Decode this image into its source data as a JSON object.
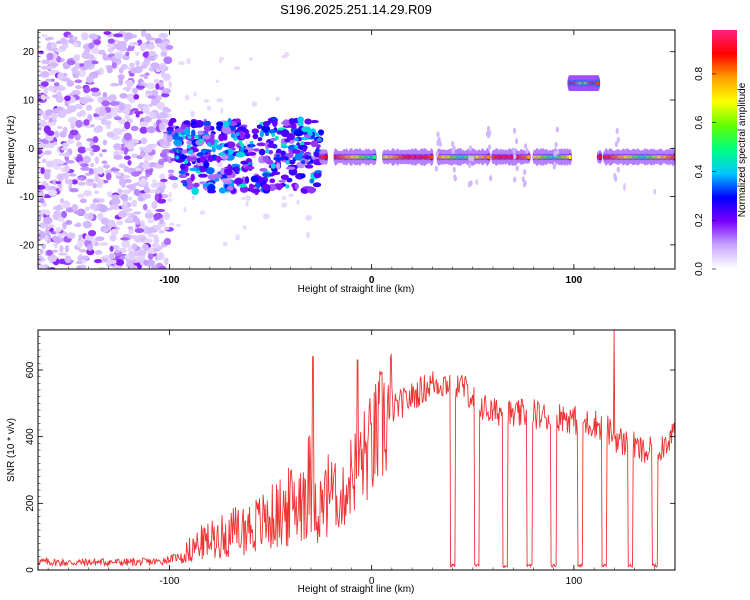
{
  "title": "S196.2025.251.14.29.R09",
  "chart_data": [
    {
      "type": "heatmap",
      "title": "S196.2025.251.14.29.R09",
      "xlabel": "Height of straight line (km)",
      "ylabel": "Frequency (Hz)",
      "xlim": [
        -165,
        150
      ],
      "ylim": [
        -25,
        24.5
      ],
      "xticks": [
        -100,
        0,
        100
      ],
      "xtick_labels": [
        "-100",
        "0",
        "100"
      ],
      "yticks": [
        -20,
        -10,
        0,
        10,
        20
      ],
      "ytick_labels": [
        "-20",
        "-10",
        "0",
        "10",
        "20"
      ],
      "colorbar": {
        "label": "Normalized spectral amplitude",
        "range": [
          0,
          0.98
        ],
        "ticks": [
          0.0,
          0.2,
          0.4,
          0.6,
          0.8
        ],
        "tick_labels": [
          "0.0",
          "0.2",
          "0.4",
          "0.6",
          "0.8"
        ],
        "colormap": [
          "#ffffff",
          "#c8a6ff",
          "#7a00ff",
          "#0000ff",
          "#00c8ff",
          "#00ff80",
          "#60ff00",
          "#ffff00",
          "#ffa000",
          "#ff0000",
          "#ff2080"
        ]
      },
      "features": [
        {
          "name": "noise region",
          "x_range": [
            -165,
            -100
          ],
          "freq_range": [
            -25,
            24
          ],
          "amplitude": 0.1
        },
        {
          "name": "transition scatter",
          "x_range": [
            -100,
            -25
          ],
          "freq_range": [
            -9,
            6
          ],
          "amplitude": 0.35
        },
        {
          "name": "main line",
          "x_range": [
            -25,
            150
          ],
          "freq": -1.8,
          "amplitude": 0.7
        },
        {
          "name": "offset line",
          "x_range": [
            98,
            112
          ],
          "freq": 13.5,
          "amplitude": 0.8
        }
      ]
    },
    {
      "type": "line",
      "xlabel": "Height of straight line (km)",
      "ylabel": "SNR (10 * v/v)",
      "xlim": [
        -165,
        150
      ],
      "ylim": [
        0,
        720
      ],
      "xticks": [
        -100,
        0,
        100
      ],
      "xtick_labels": [
        "-100",
        "0",
        "100"
      ],
      "yticks": [
        0,
        200,
        400,
        600
      ],
      "ytick_labels": [
        "0",
        "200",
        "400",
        "600"
      ],
      "series": [
        {
          "name": "SNR",
          "color": "#ee3333",
          "x": [
            -165,
            -150,
            -135,
            -120,
            -105,
            -95,
            -85,
            -75,
            -65,
            -55,
            -45,
            -38,
            -31,
            -25,
            -20,
            -15,
            -10,
            -5,
            0,
            5,
            10,
            15,
            20,
            25,
            30,
            35,
            40,
            45,
            50,
            55,
            60,
            65,
            70,
            75,
            80,
            85,
            90,
            95,
            100,
            105,
            110,
            115,
            120,
            125,
            130,
            135,
            140,
            145,
            150
          ],
          "values": [
            25,
            22,
            24,
            23,
            25,
            40,
            80,
            100,
            120,
            140,
            170,
            200,
            260,
            180,
            240,
            200,
            290,
            330,
            370,
            430,
            480,
            500,
            520,
            540,
            560,
            560,
            560,
            550,
            520,
            490,
            470,
            480,
            460,
            470,
            470,
            460,
            460,
            460,
            450,
            440,
            440,
            430,
            400,
            380,
            370,
            350,
            360,
            380,
            420
          ]
        }
      ],
      "dropouts_x": [
        40,
        52,
        66,
        78,
        90,
        103,
        115,
        128,
        140
      ],
      "spikes": [
        {
          "x": -29,
          "value": 640
        },
        {
          "x": -7,
          "value": 630
        },
        {
          "x": 120,
          "value": 720
        }
      ]
    }
  ]
}
